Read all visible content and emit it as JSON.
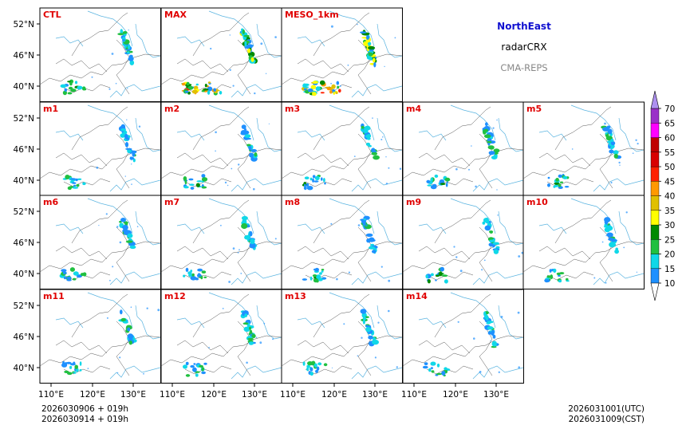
{
  "header": {
    "region": "NorthEast",
    "variable": "radarCRX",
    "system": "CMA-REPS"
  },
  "footer": {
    "init_utc": "2026030906  +  019h",
    "init_cst": "2026030914  +  019h",
    "valid_utc": "2026031001(UTC)",
    "valid_cst": "2026031009(CST)"
  },
  "chart_data": {
    "type": "heatmap",
    "title": "NorthEast radarCRX CMA-REPS",
    "panels": [
      "CTL",
      "MAX",
      "MESO_1km",
      "m1",
      "m2",
      "m3",
      "m4",
      "m5",
      "m6",
      "m7",
      "m8",
      "m9",
      "m10",
      "m11",
      "m12",
      "m13",
      "m14"
    ],
    "y_ticks": [
      "52°N",
      "46°N",
      "40°N"
    ],
    "x_ticks": [
      "110°E",
      "120°E",
      "130°E"
    ],
    "colorbar": {
      "levels": [
        "10",
        "15",
        "20",
        "25",
        "30",
        "35",
        "40",
        "45",
        "50",
        "55",
        "60",
        "65",
        "70"
      ],
      "colors": [
        "#1e90ff",
        "#10d8e8",
        "#20c040",
        "#008a00",
        "#ffff00",
        "#e0c000",
        "#ff9900",
        "#ff2000",
        "#d80000",
        "#c00000",
        "#ff00ff",
        "#9a30c8",
        "#ad90f0"
      ],
      "extend": "both"
    }
  }
}
